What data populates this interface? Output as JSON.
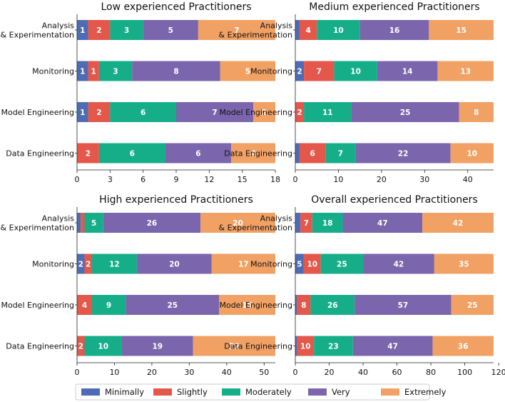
{
  "chart_data": {
    "type": "bar",
    "orientation": "horizontal",
    "stacked": true,
    "colors": {
      "Minimally": "#4e6cb5",
      "Slightly": "#e4574b",
      "Moderately": "#16ae89",
      "Very": "#7b65ad",
      "Extremely": "#f2a164"
    },
    "legend": {
      "entries": [
        "Minimally",
        "Slightly",
        "Moderately",
        "Very",
        "Extremely"
      ],
      "placement": "bottom"
    },
    "panels": [
      {
        "title": "Low experienced Practitioners",
        "categories": [
          [
            "Analysis",
            "& Experimentation"
          ],
          [
            "Monitoring"
          ],
          [
            "Model Engineering"
          ],
          [
            "Data Engineering"
          ]
        ],
        "xlim": [
          0,
          18
        ],
        "xticks": [
          0,
          3,
          6,
          9,
          12,
          15,
          18
        ],
        "series": [
          {
            "name": "Minimally",
            "values": [
              1,
              1,
              1,
              0
            ]
          },
          {
            "name": "Slightly",
            "values": [
              2,
              1,
              2,
              2
            ]
          },
          {
            "name": "Moderately",
            "values": [
              3,
              3,
              6,
              6
            ]
          },
          {
            "name": "Very",
            "values": [
              5,
              8,
              7,
              6
            ]
          },
          {
            "name": "Extremely",
            "values": [
              7,
              5,
              2,
              4
            ]
          }
        ]
      },
      {
        "title": "Medium experienced Practitioners",
        "categories": [
          [
            "Analysis",
            "& Experimentation"
          ],
          [
            "Monitoring"
          ],
          [
            "Model Engineering"
          ],
          [
            "Data Engineering"
          ]
        ],
        "xlim": [
          0,
          46
        ],
        "xticks": [
          0,
          10,
          20,
          30,
          40
        ],
        "series": [
          {
            "name": "Minimally",
            "values": [
              1,
              2,
              0,
              1
            ]
          },
          {
            "name": "Slightly",
            "values": [
              4,
              7,
              2,
              6
            ]
          },
          {
            "name": "Moderately",
            "values": [
              10,
              10,
              11,
              7
            ]
          },
          {
            "name": "Very",
            "values": [
              16,
              14,
              25,
              22
            ]
          },
          {
            "name": "Extremely",
            "values": [
              15,
              13,
              8,
              10
            ]
          }
        ]
      },
      {
        "title": "High experienced Practitioners",
        "categories": [
          [
            "Analysis",
            "& Experimentation"
          ],
          [
            "Monitoring"
          ],
          [
            "Model Engineering"
          ],
          [
            "Data Engineering"
          ]
        ],
        "xlim": [
          0,
          53
        ],
        "xticks": [
          0,
          10,
          20,
          30,
          40,
          50
        ],
        "series": [
          {
            "name": "Minimally",
            "values": [
              1,
              2,
              0,
              0
            ]
          },
          {
            "name": "Slightly",
            "values": [
              1,
              2,
              4,
              2
            ]
          },
          {
            "name": "Moderately",
            "values": [
              5,
              12,
              9,
              10
            ]
          },
          {
            "name": "Very",
            "values": [
              26,
              20,
              25,
              19
            ]
          },
          {
            "name": "Extremely",
            "values": [
              20,
              17,
              15,
              22
            ]
          }
        ]
      },
      {
        "title": "Overall experienced Practitioners",
        "categories": [
          [
            "Analysis",
            "& Experimentation"
          ],
          [
            "Monitoring"
          ],
          [
            "Model Engineering"
          ],
          [
            "Data Engineering"
          ]
        ],
        "xlim": [
          0,
          117
        ],
        "xticks": [
          0,
          20,
          40,
          60,
          80,
          100,
          120
        ],
        "series": [
          {
            "name": "Minimally",
            "values": [
              3,
              5,
              1,
              1
            ]
          },
          {
            "name": "Slightly",
            "values": [
              7,
              10,
              8,
              10
            ]
          },
          {
            "name": "Moderately",
            "values": [
              18,
              25,
              26,
              23
            ]
          },
          {
            "name": "Very",
            "values": [
              47,
              42,
              57,
              47
            ]
          },
          {
            "name": "Extremely",
            "values": [
              42,
              35,
              25,
              36
            ]
          }
        ]
      }
    ]
  }
}
